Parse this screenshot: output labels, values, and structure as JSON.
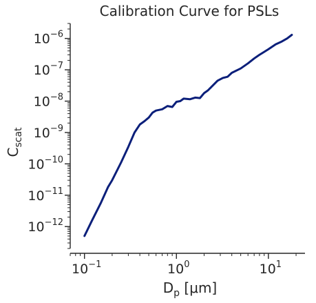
{
  "chart_data": {
    "type": "line",
    "title": "Calibration Curve for PSLs",
    "xlabel": {
      "main": "D",
      "sub": "p",
      "unit": " [μm]"
    },
    "ylabel": {
      "main": "C",
      "sub": "scat"
    },
    "xscale": "log",
    "yscale": "log",
    "xlim": [
      0.07,
      25
    ],
    "ylim": [
      2e-13,
      3e-06
    ],
    "grid": false,
    "x_ticks": [
      {
        "value": 0.1,
        "base": "10",
        "exp": "−1"
      },
      {
        "value": 1,
        "base": "10",
        "exp": "0"
      },
      {
        "value": 10,
        "base": "10",
        "exp": "1"
      }
    ],
    "y_ticks": [
      {
        "value": 1e-12,
        "base": "10",
        "exp": "−12"
      },
      {
        "value": 1e-11,
        "base": "10",
        "exp": "−11"
      },
      {
        "value": 1e-10,
        "base": "10",
        "exp": "−10"
      },
      {
        "value": 1e-09,
        "base": "10",
        "exp": "−9"
      },
      {
        "value": 1e-08,
        "base": "10",
        "exp": "−8"
      },
      {
        "value": 1e-07,
        "base": "10",
        "exp": "−7"
      },
      {
        "value": 1e-06,
        "base": "10",
        "exp": "−6"
      }
    ],
    "series": [
      {
        "color": "#0b1f7a",
        "x": [
          0.1,
          0.12,
          0.15,
          0.18,
          0.2,
          0.25,
          0.3,
          0.35,
          0.4,
          0.45,
          0.5,
          0.55,
          0.6,
          0.7,
          0.8,
          0.9,
          1.0,
          1.1,
          1.2,
          1.4,
          1.6,
          1.8,
          2.0,
          2.2,
          2.5,
          2.8,
          3.2,
          3.6,
          4.0,
          5.0,
          6.0,
          7.0,
          8.0,
          10.0,
          12.0,
          14.0,
          16.0,
          18.0
        ],
        "y": [
          5e-13,
          1.5e-12,
          5.5e-12,
          1.8e-11,
          3e-11,
          1.1e-10,
          3.5e-10,
          1e-09,
          1.8e-09,
          2.3e-09,
          3e-09,
          4.3e-09,
          5e-09,
          5.5e-09,
          7e-09,
          6.5e-09,
          9.5e-09,
          1e-08,
          1.2e-08,
          1.15e-08,
          1.3e-08,
          1.25e-08,
          1.8e-08,
          2.2e-08,
          3.2e-08,
          4.5e-08,
          5.5e-08,
          6e-08,
          8e-08,
          1.1e-07,
          1.6e-07,
          2.3e-07,
          3e-07,
          4.5e-07,
          6.5e-07,
          8e-07,
          1e-06,
          1.3e-06
        ]
      }
    ]
  }
}
